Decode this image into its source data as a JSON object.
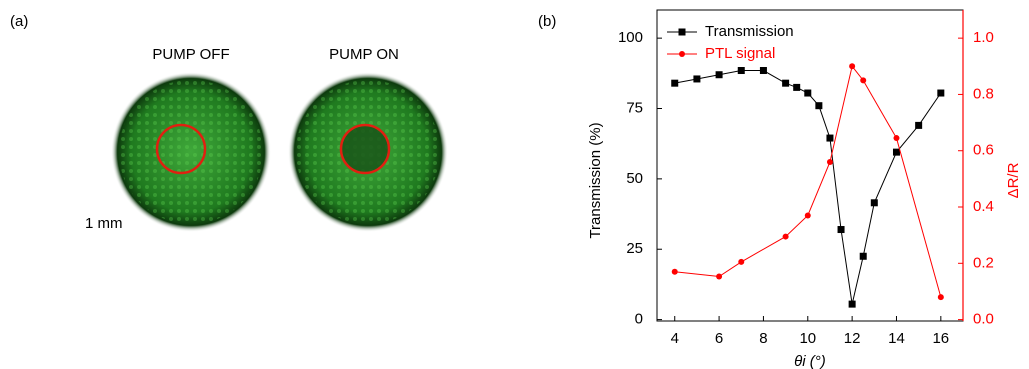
{
  "panel_a": {
    "label": "(a)",
    "captions": [
      "PUMP OFF",
      "PUMP ON"
    ],
    "scale": "1 mm"
  },
  "chart_data": {
    "type": "line",
    "panel_label": "(b)",
    "xlabel": "θi (°)",
    "ylabel": "Transmission (%)",
    "y2label": "ΔR/R",
    "xlim": [
      3.2,
      17.0
    ],
    "xticks": [
      4,
      6,
      8,
      10,
      12,
      14,
      16
    ],
    "ylim": [
      -0.5,
      110
    ],
    "yticks": [
      0,
      25,
      50,
      75,
      100
    ],
    "y2lim": [
      -0.005,
      1.1
    ],
    "y2ticks": [
      {
        "value": 0,
        "label": "0.0"
      },
      0.2,
      0.4,
      0.6,
      0.8,
      {
        "value": 1,
        "label": "1.0"
      }
    ],
    "y2color": "#ff0000",
    "legend": "top-left",
    "series": [
      {
        "name": "Transmission",
        "color": "#000000",
        "marker": "square",
        "x": [
          4,
          5,
          6,
          7,
          8,
          9,
          9.5,
          10,
          10.5,
          11,
          11.5,
          12,
          12.5,
          13,
          14,
          15,
          16
        ],
        "values": [
          84,
          85.5,
          87,
          88.5,
          88.5,
          84,
          82.5,
          80.5,
          76,
          64.5,
          32,
          5.5,
          22.5,
          41.5,
          59.5,
          69,
          80.5
        ]
      },
      {
        "name": "PTL signal",
        "color": "#ff0000",
        "marker": "circle",
        "axis": "y2",
        "x": [
          4,
          6,
          7,
          9,
          10,
          11,
          12,
          12.5,
          14,
          16
        ],
        "values": [
          0.17,
          0.153,
          0.205,
          0.295,
          0.37,
          0.56,
          0.9,
          0.85,
          0.645,
          0.08
        ]
      }
    ]
  }
}
